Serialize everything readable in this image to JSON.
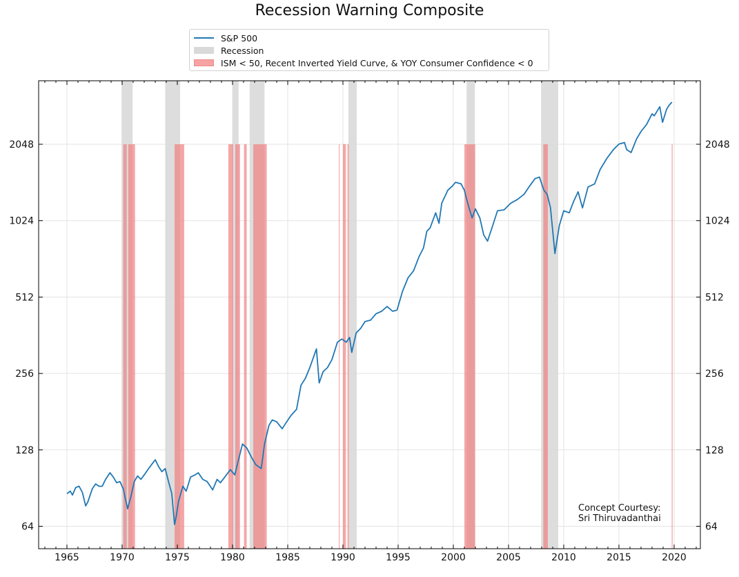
{
  "chart_data": {
    "type": "line",
    "title": "Recession Warning Composite",
    "xlabel": "",
    "ylabel": "",
    "yscale": "log2",
    "xlim": [
      1962.4,
      2022.4
    ],
    "ylim": [
      52,
      3640
    ],
    "grid": true,
    "legend_placement": "top-center (above plot)",
    "x_ticks": [
      1965,
      1970,
      1975,
      1980,
      1985,
      1990,
      1995,
      2000,
      2005,
      2010,
      2015,
      2020
    ],
    "y_ticks": [
      64,
      128,
      256,
      512,
      1024,
      2048
    ],
    "legend": {
      "sp500": "S&P 500",
      "recession": "Recession",
      "warning": "ISM < 50, Recent Inverted Yield Curve, & YOY Consumer Confidence < 0"
    },
    "annotation": [
      "Concept Courtesy:",
      "Sri Thiruvadanthai"
    ],
    "colors": {
      "sp500": "#1f77b4",
      "recession": "#d9d9d9",
      "warning": "#f08080"
    },
    "warning_level": 2048,
    "recessions": [
      [
        1969.95,
        1970.95
      ],
      [
        1973.9,
        1975.25
      ],
      [
        1980.0,
        1980.55
      ],
      [
        1981.55,
        1982.9
      ],
      [
        1990.5,
        1991.25
      ],
      [
        2001.2,
        2001.95
      ],
      [
        2007.95,
        2009.5
      ]
    ],
    "warnings": [
      [
        1970.1,
        1970.42
      ],
      [
        1970.55,
        1971.17
      ],
      [
        1974.75,
        1975.62
      ],
      [
        1979.62,
        1980.06
      ],
      [
        1980.25,
        1980.68
      ],
      [
        1981.04,
        1981.28
      ],
      [
        1981.88,
        1983.1
      ],
      [
        1989.63,
        1989.7
      ],
      [
        1990.0,
        1990.27
      ],
      [
        1990.41,
        1990.53
      ],
      [
        2001.0,
        2001.98
      ],
      [
        2008.15,
        2008.56
      ],
      [
        2019.78,
        2019.86
      ]
    ],
    "series": [
      {
        "name": "S&P 500",
        "x": [
          1965.0,
          1965.3,
          1965.5,
          1965.8,
          1966.1,
          1966.4,
          1966.7,
          1966.9,
          1967.3,
          1967.6,
          1967.9,
          1968.2,
          1968.5,
          1968.9,
          1969.2,
          1969.5,
          1969.8,
          1970.1,
          1970.3,
          1970.5,
          1970.8,
          1971.1,
          1971.4,
          1971.7,
          1972.0,
          1972.4,
          1972.8,
          1973.0,
          1973.3,
          1973.6,
          1973.9,
          1974.2,
          1974.5,
          1974.75,
          1974.9,
          1975.1,
          1975.5,
          1975.8,
          1976.2,
          1976.6,
          1976.9,
          1977.3,
          1977.7,
          1978.2,
          1978.6,
          1978.9,
          1979.3,
          1979.8,
          1980.2,
          1980.5,
          1980.9,
          1981.3,
          1981.7,
          1982.1,
          1982.6,
          1982.9,
          1983.3,
          1983.6,
          1984.0,
          1984.5,
          1984.9,
          1985.3,
          1985.8,
          1986.2,
          1986.6,
          1987.0,
          1987.6,
          1987.85,
          1988.2,
          1988.6,
          1989.0,
          1989.5,
          1989.9,
          1990.3,
          1990.6,
          1990.8,
          1991.2,
          1991.6,
          1992.0,
          1992.5,
          1993.0,
          1993.5,
          1994.0,
          1994.5,
          1994.9,
          1995.4,
          1995.9,
          1996.4,
          1996.9,
          1997.3,
          1997.6,
          1997.9,
          1998.4,
          1998.7,
          1998.95,
          1999.5,
          1999.9,
          2000.2,
          2000.7,
          2001.0,
          2001.3,
          2001.7,
          2002.0,
          2002.4,
          2002.75,
          2003.1,
          2003.5,
          2004.0,
          2004.6,
          2005.2,
          2005.8,
          2006.4,
          2006.9,
          2007.4,
          2007.8,
          2008.2,
          2008.5,
          2008.8,
          2009.2,
          2009.6,
          2010.0,
          2010.5,
          2010.9,
          2011.3,
          2011.7,
          2012.2,
          2012.8,
          2013.3,
          2013.9,
          2014.5,
          2015.0,
          2015.5,
          2015.7,
          2016.1,
          2016.6,
          2017.0,
          2017.5,
          2018.0,
          2018.2,
          2018.7,
          2018.95,
          2019.3,
          2019.5,
          2019.8
        ],
        "y": [
          86,
          88,
          85,
          91,
          92,
          87,
          77,
          80,
          90,
          94,
          92,
          92,
          98,
          104,
          100,
          95,
          96,
          90,
          82,
          75,
          84,
          96,
          101,
          98,
          102,
          108,
          114,
          117,
          110,
          105,
          108,
          96,
          86,
          65,
          70,
          80,
          92,
          88,
          100,
          102,
          104,
          98,
          96,
          89,
          98,
          95,
          100,
          107,
          102,
          115,
          135,
          130,
          120,
          112,
          108,
          135,
          160,
          168,
          165,
          155,
          165,
          175,
          185,
          230,
          245,
          270,
          320,
          235,
          260,
          270,
          290,
          340,
          350,
          340,
          355,
          310,
          370,
          385,
          410,
          415,
          440,
          450,
          470,
          450,
          455,
          540,
          610,
          650,
          740,
          800,
          930,
          960,
          1100,
          1000,
          1200,
          1350,
          1400,
          1450,
          1430,
          1350,
          1200,
          1050,
          1140,
          1050,
          900,
          850,
          960,
          1120,
          1130,
          1200,
          1240,
          1300,
          1400,
          1500,
          1520,
          1350,
          1300,
          1150,
          760,
          980,
          1120,
          1100,
          1220,
          1330,
          1150,
          1390,
          1430,
          1630,
          1800,
          1950,
          2050,
          2080,
          1950,
          1900,
          2150,
          2300,
          2450,
          2700,
          2650,
          2880,
          2500,
          2800,
          2900,
          3000
        ]
      }
    ]
  }
}
